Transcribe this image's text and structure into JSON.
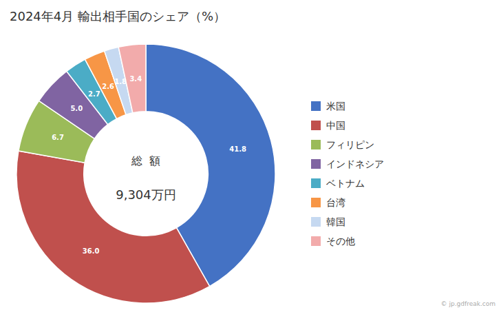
{
  "chart_data": {
    "type": "pie",
    "title": "2024年4月 輸出相手国のシェア（%）",
    "annotations": [
      "総  額",
      "9,304万円",
      "© jp.gdfreak.com"
    ],
    "categories": [
      "米国",
      "中国",
      "フィリピン",
      "インドネシア",
      "ベトナム",
      "台湾",
      "韓国",
      "その他"
    ],
    "values": [
      41.8,
      36.0,
      6.7,
      5.0,
      2.7,
      2.6,
      1.8,
      3.4
    ],
    "value_labels": [
      "41.8",
      "36.0",
      "6.7",
      "5.0",
      "2.7",
      "2.6",
      "1.8",
      "3.4"
    ],
    "colors": [
      "#4472C4",
      "#C0504D",
      "#9BBB59",
      "#8064A2",
      "#4BACC6",
      "#F79646",
      "#C6D9F1",
      "#F2ABAB"
    ],
    "data_labels": true,
    "legend": "right"
  }
}
